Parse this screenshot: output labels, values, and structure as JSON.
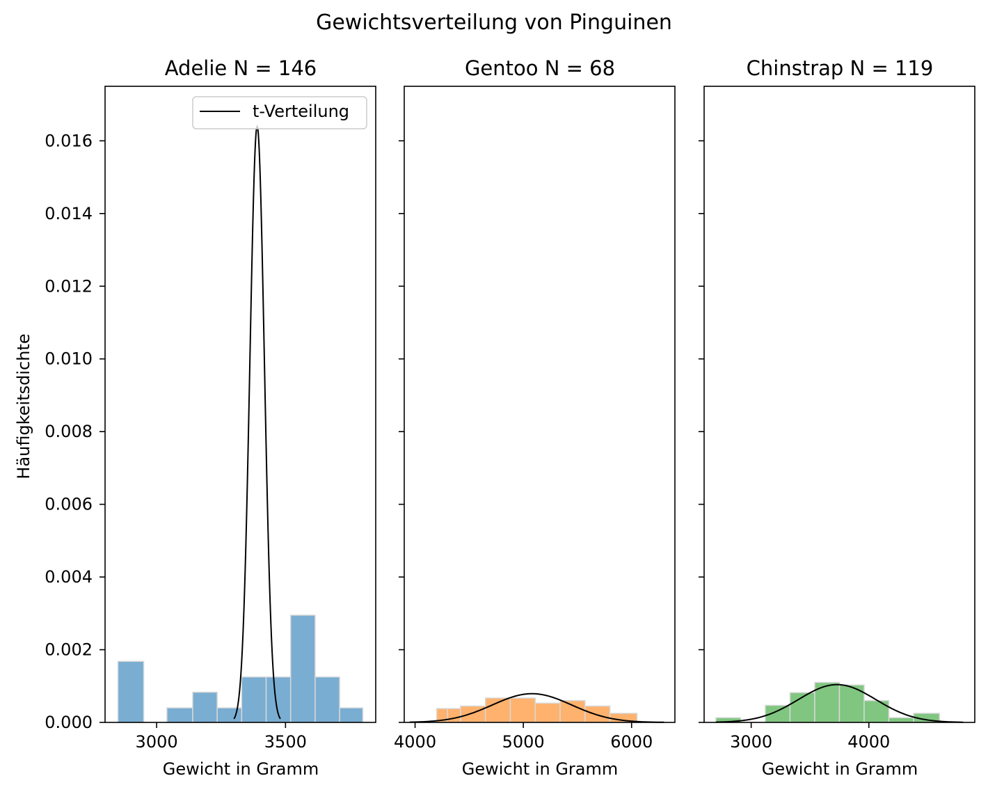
{
  "figure": {
    "title": "Gewichtsverteilung von Pinguinen",
    "ylabel": "Häufigkeitsdichte"
  },
  "chart_data": [
    {
      "type": "bar",
      "title": "Adelie N = 146",
      "xlabel": "Gewicht in Gramm",
      "ylabel": "Häufigkeitsdichte",
      "xlim": [
        2800,
        3850
      ],
      "ylim": [
        0,
        0.0175
      ],
      "xticks": [
        3000,
        3500
      ],
      "yticks": [
        "0.000",
        "0.002",
        "0.004",
        "0.006",
        "0.008",
        "0.010",
        "0.012",
        "0.014",
        "0.016"
      ],
      "color": "#1f77b4",
      "bins": [
        {
          "x0": 2850,
          "x1": 2950,
          "y": 0.00168
        },
        {
          "x0": 2950,
          "x1": 3040,
          "y": 0
        },
        {
          "x0": 3040,
          "x1": 3140,
          "y": 0.0004
        },
        {
          "x0": 3140,
          "x1": 3235,
          "y": 0.00083
        },
        {
          "x0": 3235,
          "x1": 3330,
          "y": 0.0004
        },
        {
          "x0": 3330,
          "x1": 3425,
          "y": 0.00125
        },
        {
          "x0": 3425,
          "x1": 3520,
          "y": 0.00125
        },
        {
          "x0": 3520,
          "x1": 3615,
          "y": 0.00295
        },
        {
          "x0": 3615,
          "x1": 3710,
          "y": 0.00125
        },
        {
          "x0": 3710,
          "x1": 3800,
          "y": 0.0004
        }
      ],
      "curve": {
        "name": "t-Verteilung",
        "mean": 3390,
        "peak": 0.0164,
        "x_range": [
          3300,
          3480
        ]
      },
      "legend": {
        "entries": [
          "t-Verteilung"
        ],
        "placement": "top-right"
      }
    },
    {
      "type": "bar",
      "title": "Gentoo N = 68",
      "xlabel": "Gewicht in Gramm",
      "xlim": [
        3900,
        6400
      ],
      "ylim": [
        0,
        0.0175
      ],
      "xticks": [
        4000,
        5000,
        6000
      ],
      "color": "#ff7f0e",
      "bins": [
        {
          "x0": 4200,
          "x1": 4300,
          "y": 0.00038
        },
        {
          "x0": 4300,
          "x1": 4420,
          "y": 0.00038
        },
        {
          "x0": 4420,
          "x1": 4650,
          "y": 0.00045
        },
        {
          "x0": 4650,
          "x1": 4880,
          "y": 0.00067
        },
        {
          "x0": 4880,
          "x1": 5110,
          "y": 0.00067
        },
        {
          "x0": 5110,
          "x1": 5340,
          "y": 0.00053
        },
        {
          "x0": 5340,
          "x1": 5570,
          "y": 0.0006
        },
        {
          "x0": 5570,
          "x1": 5800,
          "y": 0.00045
        },
        {
          "x0": 5800,
          "x1": 6050,
          "y": 0.00025
        }
      ],
      "curve": {
        "name": "t-Verteilung",
        "mean": 5080,
        "peak": 0.00079,
        "x_range": [
          3950,
          6300
        ]
      }
    },
    {
      "type": "bar",
      "title": "Chinstrap N = 119",
      "xlabel": "Gewicht in Gramm",
      "xlim": [
        2600,
        4900
      ],
      "ylim": [
        0,
        0.0175
      ],
      "xticks": [
        3000,
        4000
      ],
      "color": "#2ca02c",
      "bins": [
        {
          "x0": 2700,
          "x1": 2910,
          "y": 0.00013
        },
        {
          "x0": 2910,
          "x1": 3120,
          "y": 0
        },
        {
          "x0": 3120,
          "x1": 3330,
          "y": 0.00047
        },
        {
          "x0": 3330,
          "x1": 3540,
          "y": 0.00082
        },
        {
          "x0": 3540,
          "x1": 3750,
          "y": 0.0011
        },
        {
          "x0": 3750,
          "x1": 3960,
          "y": 0.00103
        },
        {
          "x0": 3960,
          "x1": 4170,
          "y": 0.0006
        },
        {
          "x0": 4170,
          "x1": 4380,
          "y": 0.00013
        },
        {
          "x0": 4380,
          "x1": 4600,
          "y": 0.00025
        }
      ],
      "curve": {
        "name": "t-Verteilung",
        "mean": 3730,
        "peak": 0.00104,
        "x_range": [
          2700,
          4800
        ]
      }
    }
  ]
}
